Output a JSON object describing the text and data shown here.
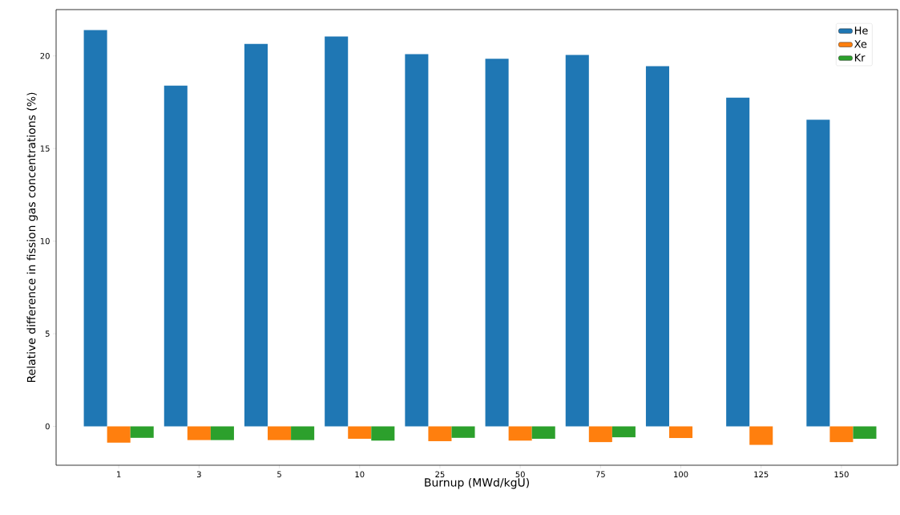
{
  "chart_data": {
    "type": "bar",
    "xlabel": "Burnup (MWd/kgU)",
    "ylabel": "Relative difference in fission gas concentrations (%)",
    "categories": [
      "1",
      "3",
      "5",
      "10",
      "25",
      "50",
      "75",
      "100",
      "125",
      "150"
    ],
    "series": [
      {
        "name": "He",
        "color": "#1f77b4",
        "values": [
          21.4,
          18.4,
          20.65,
          21.05,
          20.1,
          19.85,
          20.05,
          19.45,
          17.75,
          16.55
        ]
      },
      {
        "name": "Xe",
        "color": "#ff7f0e",
        "values": [
          -0.88,
          -0.74,
          -0.74,
          -0.67,
          -0.8,
          -0.77,
          -0.85,
          -0.63,
          -1.0,
          -0.85
        ]
      },
      {
        "name": "Kr",
        "color": "#2ca02c",
        "values": [
          -0.62,
          -0.74,
          -0.74,
          -0.77,
          -0.62,
          -0.67,
          -0.59,
          null,
          null,
          -0.67
        ]
      }
    ],
    "ylim": [
      -2.1,
      22.5
    ],
    "yticks": [
      0,
      5,
      10,
      15,
      20
    ],
    "grid": false,
    "legend": "top right"
  }
}
